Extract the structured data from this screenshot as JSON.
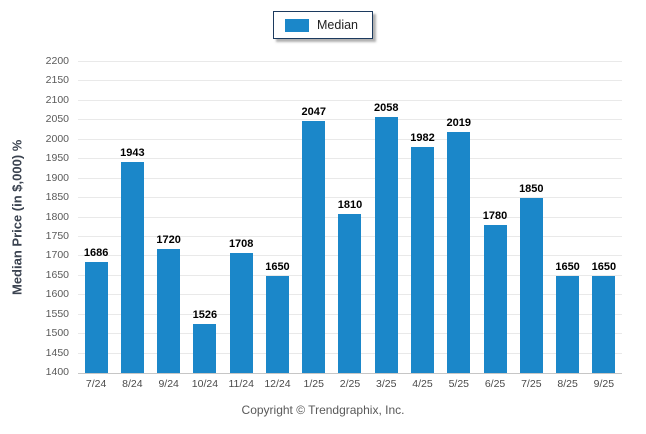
{
  "legend": {
    "label": "Median",
    "swatch_color": "#1b87c9"
  },
  "chart_data": {
    "type": "bar",
    "title": "",
    "categories": [
      "7/24",
      "8/24",
      "9/24",
      "10/24",
      "11/24",
      "12/24",
      "1/25",
      "2/25",
      "3/25",
      "4/25",
      "5/25",
      "6/25",
      "7/25",
      "8/25",
      "9/25"
    ],
    "values": [
      1686,
      1943,
      1720,
      1526,
      1708,
      1650,
      2047,
      1810,
      2058,
      1982,
      2019,
      1780,
      1850,
      1650,
      1650
    ],
    "xlabel": "",
    "ylabel": "Median Price (in $,000) %",
    "ylim": [
      1400,
      2200
    ],
    "ytick_step": 50,
    "grid": true,
    "legend_position": "top-center",
    "bar_color": "#1b87c9",
    "data_labels": true
  },
  "footer": {
    "copyright": "Copyright © Trendgraphix, Inc."
  }
}
